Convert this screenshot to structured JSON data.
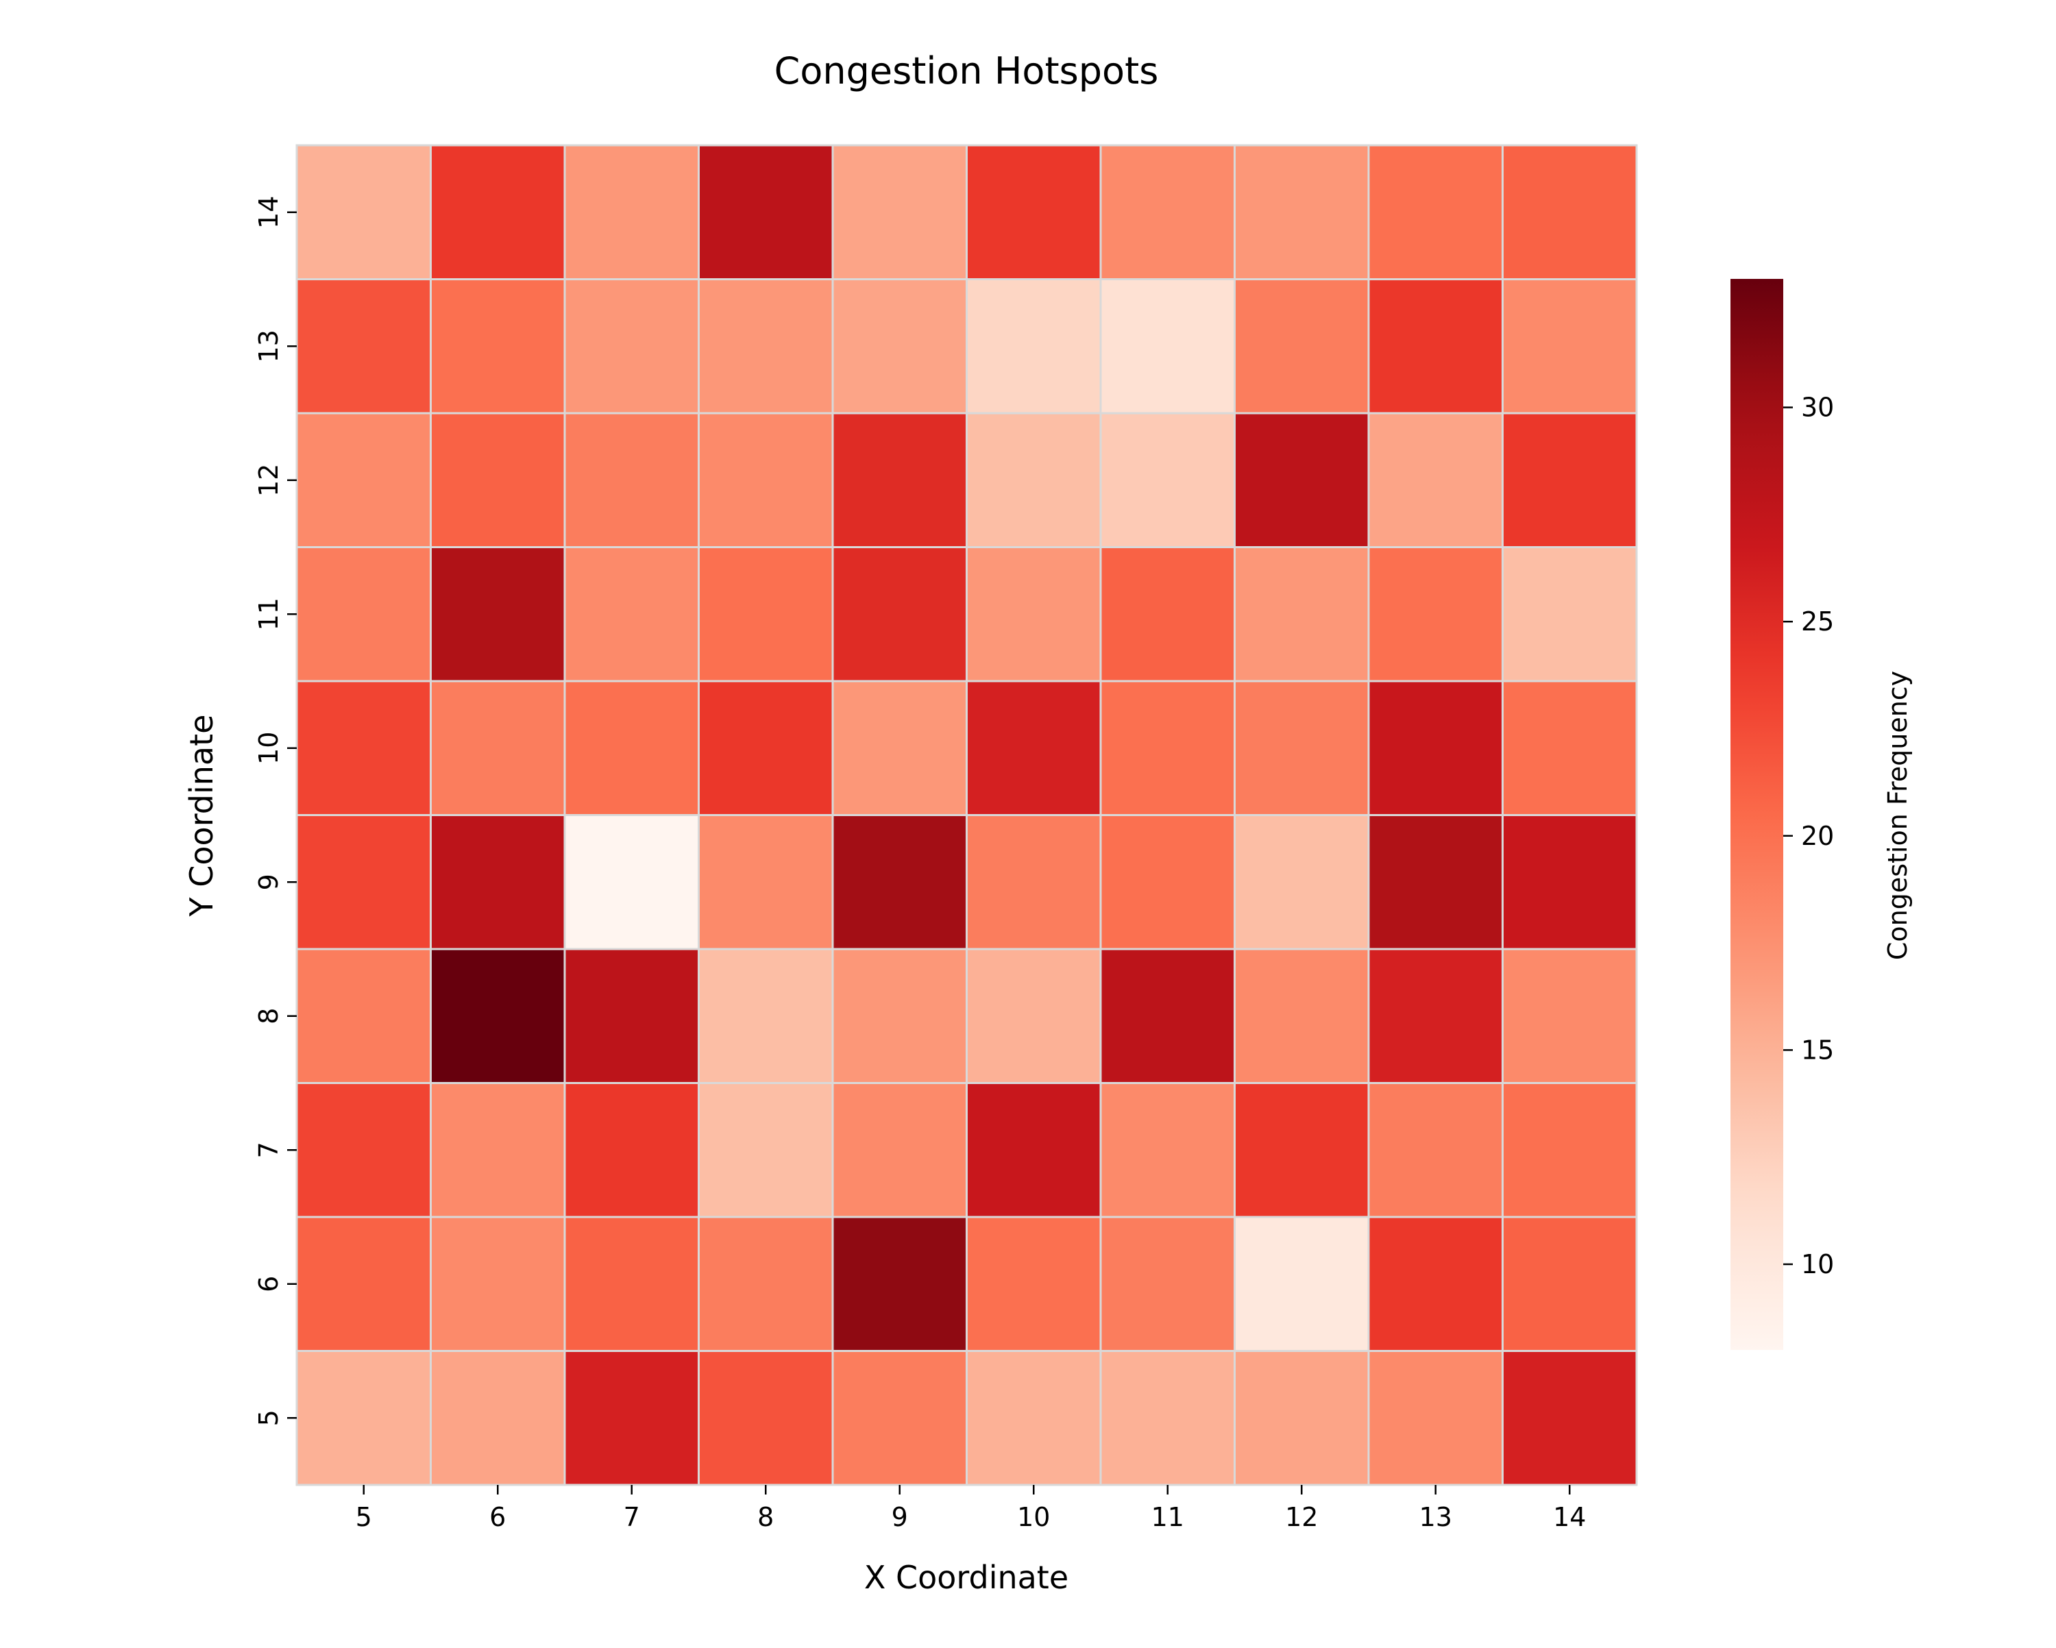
{
  "chart_data": {
    "type": "heatmap",
    "title": "Congestion Hotspots",
    "xlabel": "X Coordinate",
    "ylabel": "Y Coordinate",
    "x": [
      5,
      6,
      7,
      8,
      9,
      10,
      11,
      12,
      13,
      14
    ],
    "y": [
      14,
      13,
      12,
      11,
      10,
      9,
      8,
      7,
      6,
      5
    ],
    "values": [
      [
        15,
        24,
        17,
        28,
        16,
        24,
        18,
        17,
        20,
        21
      ],
      [
        22,
        20,
        17,
        17,
        16,
        12,
        11,
        19,
        24,
        18
      ],
      [
        18,
        21,
        19,
        18,
        25,
        14,
        13,
        28,
        16,
        24
      ],
      [
        19,
        29,
        18,
        20,
        25,
        17,
        21,
        17,
        20,
        14
      ],
      [
        23,
        19,
        20,
        24,
        17,
        26,
        20,
        19,
        27,
        20
      ],
      [
        23,
        28,
        8,
        18,
        30,
        19,
        20,
        14,
        29,
        27
      ],
      [
        19,
        33,
        28,
        14,
        17,
        15,
        28,
        18,
        26,
        18
      ],
      [
        23,
        18,
        24,
        14,
        18,
        27,
        18,
        24,
        19,
        20
      ],
      [
        21,
        18,
        21,
        19,
        31,
        20,
        19,
        10,
        24,
        21
      ],
      [
        15,
        16,
        26,
        22,
        19,
        15,
        15,
        16,
        18,
        26
      ]
    ],
    "colormap": "Reds",
    "vmin": 8,
    "vmax": 33,
    "grid_line_color": "#d9d9d9",
    "colorbar": {
      "label": "Congestion Frequency",
      "ticks": [
        10,
        15,
        20,
        25,
        30
      ],
      "tick_labels": [
        "10",
        "15",
        "20",
        "25",
        "30"
      ],
      "placement": "right"
    }
  }
}
